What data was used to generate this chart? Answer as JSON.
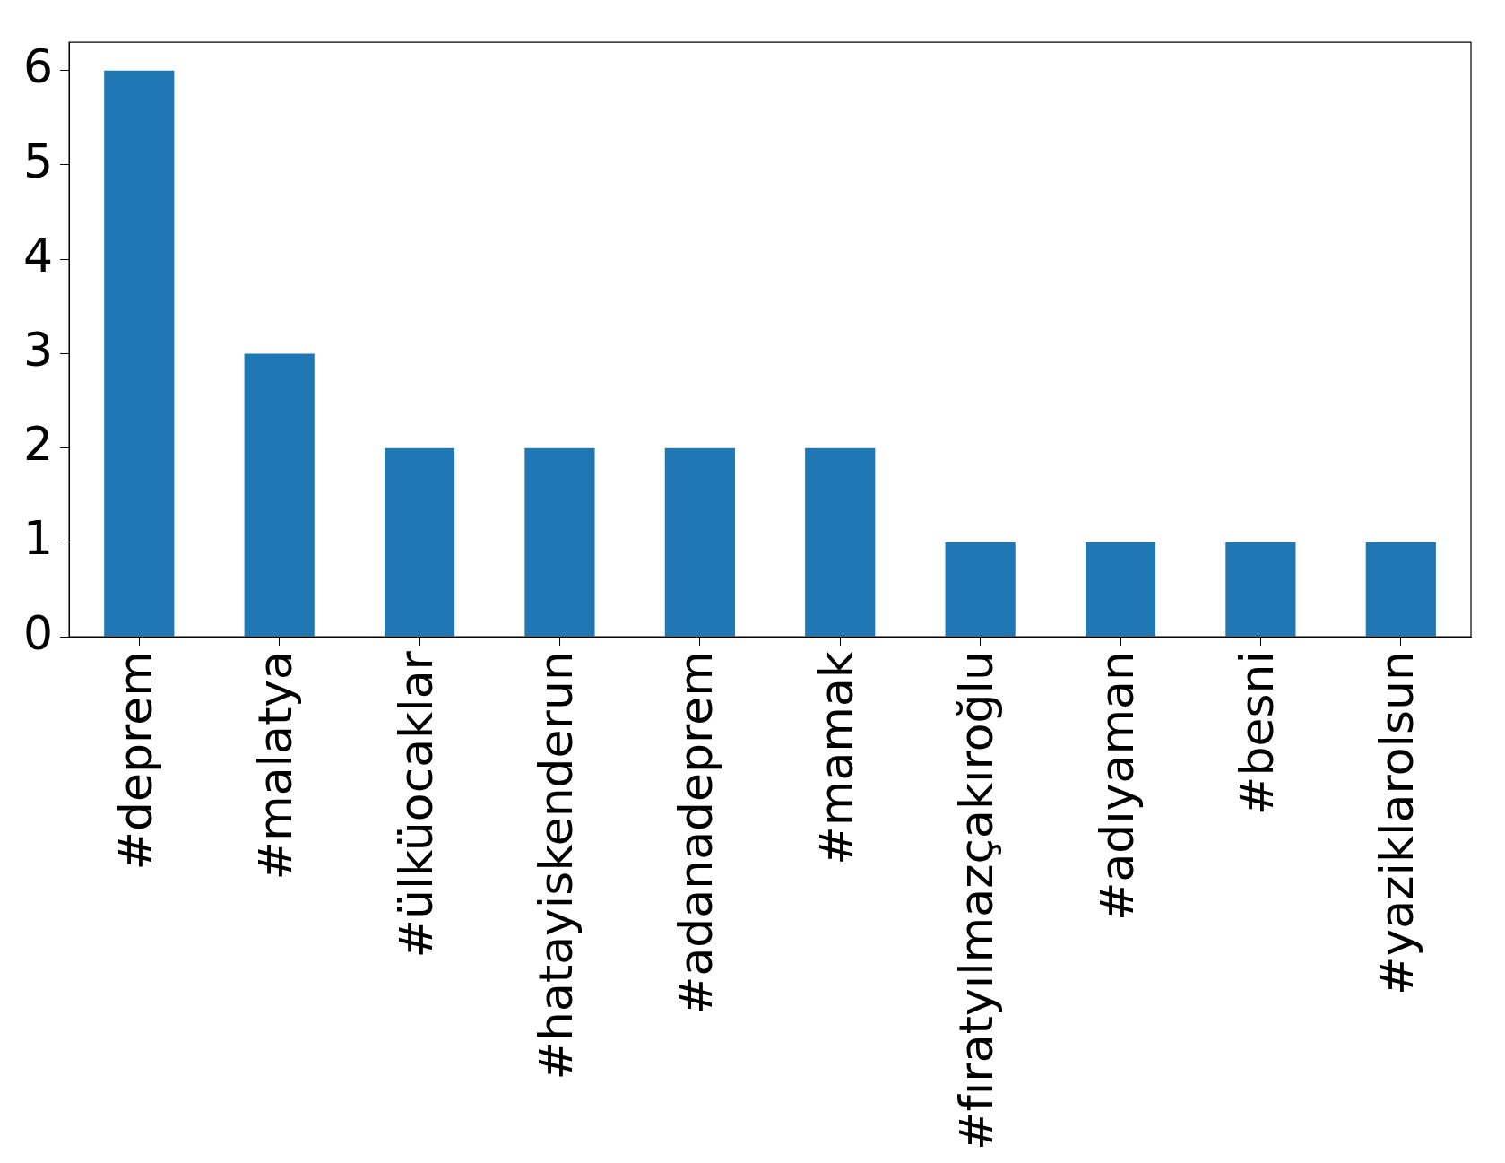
{
  "chart_data": {
    "type": "bar",
    "categories": [
      "#deprem",
      "#malatya",
      "#ülküocaklar",
      "#hatayiskenderun",
      "#adanadeprem",
      "#mamak",
      "#fıratyılmazçakıroğlu",
      "#adıyaman",
      "#besni",
      "#yaziklarolsun"
    ],
    "values": [
      6,
      3,
      2,
      2,
      2,
      2,
      1,
      1,
      1,
      1
    ],
    "color": "#1f77b4",
    "ylim": [
      0,
      6.3
    ],
    "yticks": [
      0,
      1,
      2,
      3,
      4,
      5,
      6
    ],
    "grid": false,
    "legend": false
  }
}
